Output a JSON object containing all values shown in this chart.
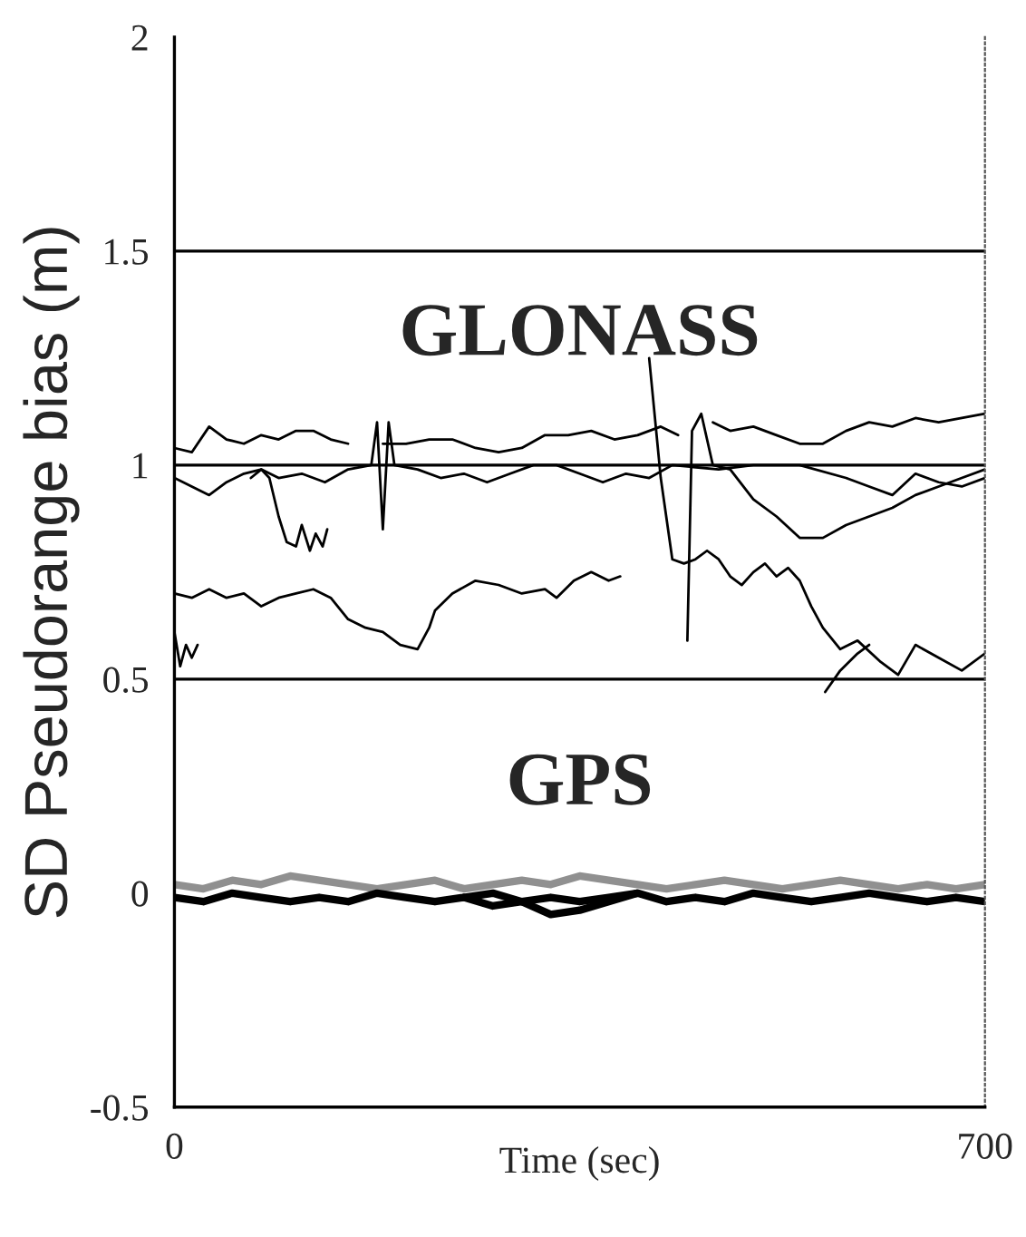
{
  "chart_data": {
    "type": "line",
    "xlabel": "Time (sec)",
    "ylabel": "SD Pseudorange bias (m)",
    "xlim": [
      0,
      700
    ],
    "xticks": [
      0,
      700
    ],
    "ylim": [
      -0.5,
      2
    ],
    "yticks": [
      -0.5,
      0,
      0.5,
      1,
      1.5,
      2
    ],
    "grid": false,
    "legend": false,
    "marker": "none",
    "line_style": "solid",
    "ref_lines": [
      {
        "axis": "y",
        "value": 1.5,
        "color": "#000000"
      },
      {
        "axis": "y",
        "value": 1,
        "color": "#000000"
      },
      {
        "axis": "y",
        "value": 0.5,
        "color": "#000000"
      }
    ],
    "annotations": [
      "GLONASS",
      "GPS"
    ],
    "series": [
      {
        "color": "#000000",
        "x": [
          0,
          15,
          30,
          45,
          60,
          75,
          90,
          105,
          120,
          135,
          150,
          165,
          180,
          200,
          220,
          240,
          260,
          280,
          300,
          320,
          340,
          360,
          380,
          400,
          420,
          435,
          450,
          465,
          480,
          500,
          520,
          540,
          560,
          580,
          600,
          620,
          640,
          660,
          680,
          700
        ],
        "values": [
          1.04,
          1.03,
          1.09,
          1.06,
          1.05,
          1.07,
          1.06,
          1.08,
          1.08,
          1.06,
          1.05,
          null,
          1.05,
          1.05,
          1.06,
          1.06,
          1.04,
          1.03,
          1.04,
          1.07,
          1.07,
          1.08,
          1.06,
          1.07,
          1.09,
          1.07,
          null,
          1.1,
          1.08,
          1.09,
          1.07,
          1.05,
          1.05,
          1.08,
          1.1,
          1.09,
          1.11,
          1.1,
          1.11,
          1.12
        ]
      },
      {
        "color": "#000000",
        "x": [
          0,
          15,
          30,
          45,
          60,
          75,
          90,
          110,
          130,
          150,
          170,
          175,
          180,
          185,
          190,
          210,
          230,
          250,
          270,
          290,
          310,
          330,
          350,
          370,
          390,
          410,
          430,
          470,
          500,
          540,
          580,
          600,
          620,
          640,
          660,
          680,
          700
        ],
        "values": [
          0.97,
          0.95,
          0.93,
          0.96,
          0.98,
          0.99,
          0.97,
          0.98,
          0.96,
          0.99,
          1.0,
          1.1,
          0.85,
          1.1,
          1.0,
          0.99,
          0.97,
          0.98,
          0.96,
          0.98,
          1.0,
          1.0,
          0.98,
          0.96,
          0.98,
          0.97,
          1.0,
          0.99,
          1.0,
          1.0,
          0.97,
          0.95,
          0.93,
          0.98,
          0.96,
          0.95,
          0.97
        ]
      },
      {
        "color": "#000000",
        "x": [
          410,
          420,
          430,
          440,
          450,
          460,
          470,
          480,
          490,
          500,
          510,
          520,
          530,
          540,
          550,
          560,
          575,
          590,
          610,
          625,
          640,
          660,
          680,
          700
        ],
        "values": [
          1.25,
          0.97,
          0.78,
          0.77,
          0.78,
          0.8,
          0.78,
          0.74,
          0.72,
          0.75,
          0.77,
          0.74,
          0.76,
          0.73,
          0.67,
          0.62,
          0.57,
          0.59,
          0.54,
          0.51,
          0.58,
          0.55,
          0.52,
          0.56
        ]
      },
      {
        "color": "#000000",
        "x": [
          0,
          15,
          30,
          45,
          60,
          75,
          90,
          105,
          120,
          135,
          150,
          165,
          180,
          195,
          210,
          220,
          225,
          240,
          260,
          280,
          300,
          320,
          330,
          345,
          360,
          375,
          385
        ],
        "values": [
          0.7,
          0.69,
          0.71,
          0.69,
          0.7,
          0.67,
          0.69,
          0.7,
          0.71,
          0.69,
          0.64,
          0.62,
          0.61,
          0.58,
          0.57,
          0.62,
          0.66,
          0.7,
          0.73,
          0.72,
          0.7,
          0.71,
          0.69,
          0.73,
          0.75,
          0.73,
          0.74
        ]
      },
      {
        "color": "#000000",
        "x": [
          0,
          5,
          10,
          15,
          20
        ],
        "values": [
          0.61,
          0.53,
          0.58,
          0.55,
          0.58
        ]
      },
      {
        "color": "#000000",
        "x": [
          66,
          75,
          82,
          90,
          97,
          105,
          110,
          117,
          122,
          128,
          132
        ],
        "values": [
          0.97,
          0.99,
          0.97,
          0.88,
          0.82,
          0.81,
          0.86,
          0.8,
          0.84,
          0.81,
          0.85
        ]
      },
      {
        "color": "#000000",
        "x": [
          443,
          447,
          455,
          465,
          480,
          500,
          520,
          540,
          560,
          580,
          600,
          620,
          640,
          660,
          680,
          700
        ],
        "values": [
          0.59,
          1.08,
          1.12,
          1.0,
          0.99,
          0.92,
          0.88,
          0.83,
          0.83,
          0.86,
          0.88,
          0.9,
          0.93,
          0.95,
          0.97,
          0.99
        ]
      },
      {
        "color": "#000000",
        "x": [
          562,
          575,
          590,
          600
        ],
        "values": [
          0.47,
          0.52,
          0.56,
          0.58
        ]
      },
      {
        "color": "#909090",
        "x": [
          0,
          25,
          50,
          75,
          100,
          125,
          150,
          175,
          200,
          225,
          250,
          275,
          300,
          325,
          350,
          375,
          400,
          425,
          450,
          475,
          500,
          525,
          550,
          575,
          600,
          625,
          650,
          675,
          700
        ],
        "values": [
          0.02,
          0.01,
          0.03,
          0.02,
          0.04,
          0.03,
          0.02,
          0.01,
          0.02,
          0.03,
          0.01,
          0.02,
          0.03,
          0.02,
          0.04,
          0.03,
          0.02,
          0.01,
          0.02,
          0.03,
          0.02,
          0.01,
          0.02,
          0.03,
          0.02,
          0.01,
          0.02,
          0.01,
          0.02
        ]
      },
      {
        "color": "#000000",
        "x": [
          0,
          25,
          50,
          75,
          100,
          125,
          150,
          175,
          200,
          225,
          250,
          275,
          300,
          325,
          350,
          375,
          400,
          425,
          450,
          475,
          500,
          525,
          550,
          575,
          600,
          625,
          650,
          675,
          700
        ],
        "values": [
          -0.01,
          -0.02,
          0.0,
          -0.01,
          -0.02,
          -0.01,
          -0.02,
          0.0,
          -0.01,
          -0.02,
          -0.01,
          0.0,
          -0.02,
          -0.01,
          -0.02,
          -0.01,
          0.0,
          -0.02,
          -0.01,
          -0.02,
          0.0,
          -0.01,
          -0.02,
          -0.01,
          0.0,
          -0.01,
          -0.02,
          -0.01,
          -0.02
        ]
      },
      {
        "color": "#000000",
        "x": [
          250,
          275,
          300,
          325,
          350,
          375,
          400
        ],
        "values": [
          -0.01,
          -0.03,
          -0.02,
          -0.05,
          -0.04,
          -0.02,
          0.0
        ]
      }
    ]
  }
}
